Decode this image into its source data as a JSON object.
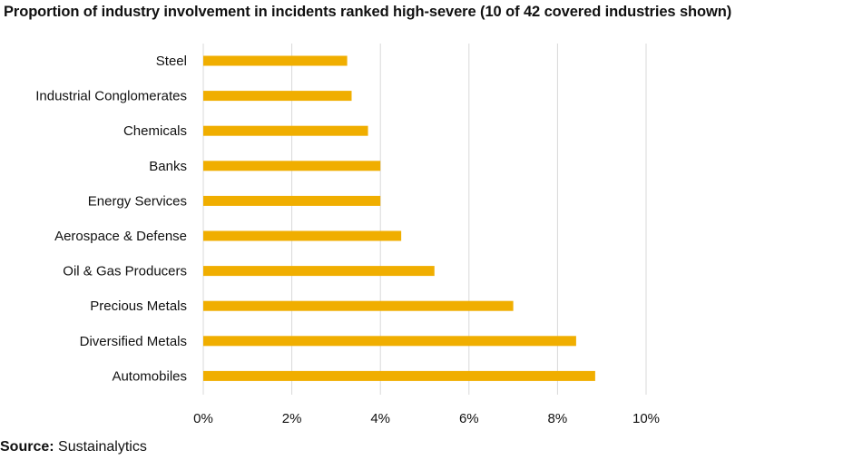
{
  "chart_data": {
    "type": "bar",
    "orientation": "horizontal",
    "title": "Proportion of industry involvement in incidents ranked high-severe (10 of 42 covered industries shown)",
    "categories": [
      "Steel",
      "Industrial Conglomerates",
      "Chemicals",
      "Banks",
      "Energy Services",
      "Aerospace & Defense",
      "Oil & Gas Producers",
      "Precious Metals",
      "Diversified Metals",
      "Automobiles"
    ],
    "values": [
      0.0325,
      0.0335,
      0.0372,
      0.04,
      0.04,
      0.0447,
      0.0522,
      0.07,
      0.0842,
      0.0885
    ],
    "xlim": [
      0,
      0.1
    ],
    "x_ticks": [
      0,
      0.02,
      0.04,
      0.06,
      0.08,
      0.1
    ],
    "x_tick_labels": [
      "0%",
      "2%",
      "4%",
      "6%",
      "8%",
      "10%"
    ],
    "xlabel": "",
    "ylabel": "",
    "grid": "vertical",
    "legend": "none",
    "bar_color": "#F0AE00"
  },
  "footer": {
    "source_label": "Source:",
    "source_value": " Sustainalytics"
  }
}
